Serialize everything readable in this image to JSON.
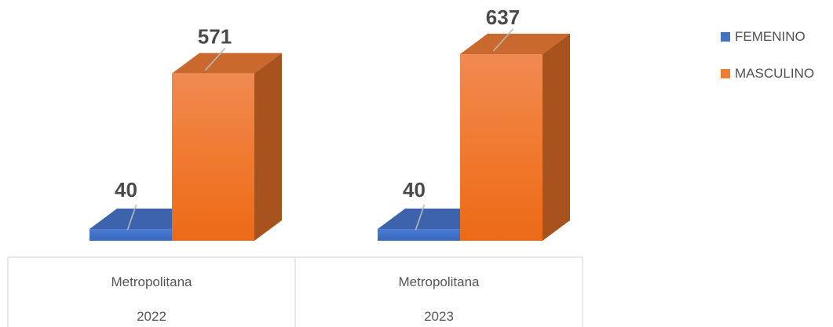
{
  "chart_data": {
    "type": "bar",
    "categories": [
      {
        "group": "Metropolitana",
        "year": "2022"
      },
      {
        "group": "Metropolitana",
        "year": "2023"
      }
    ],
    "series": [
      {
        "name": "FEMENINO",
        "color": "#4472c4",
        "values": [
          40,
          40
        ]
      },
      {
        "name": "MASCULINO",
        "color": "#ed7d31",
        "values": [
          571,
          637
        ]
      }
    ],
    "data_labels": true,
    "legend_position": "right",
    "style": "3d-column",
    "grid": false
  }
}
